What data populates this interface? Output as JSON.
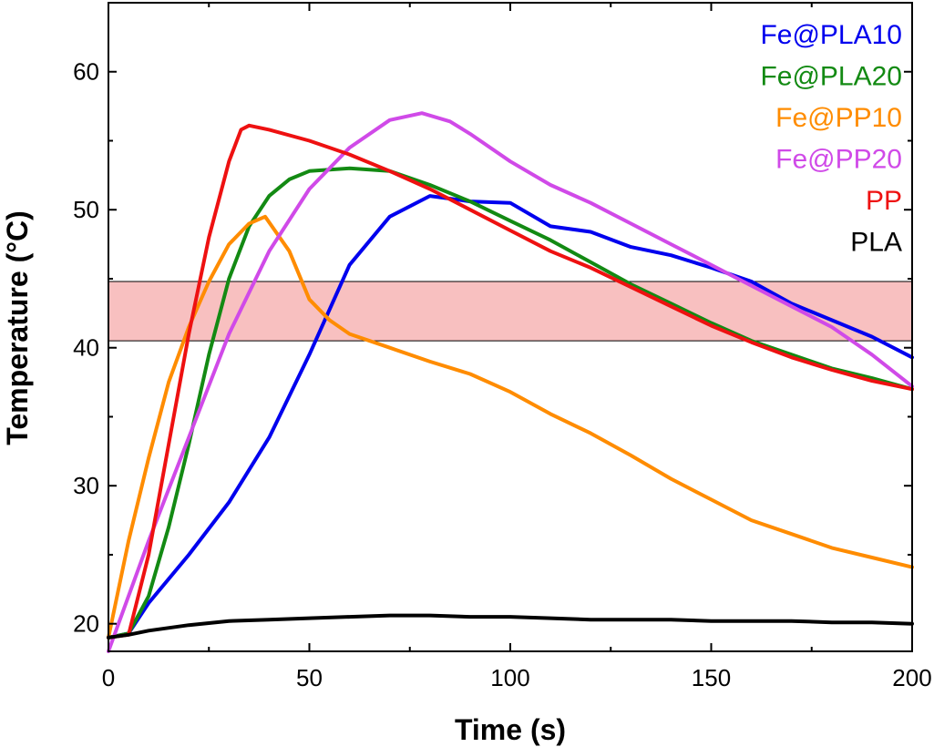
{
  "chart_data": {
    "type": "line",
    "xlabel": "Time (s)",
    "ylabel": "Temperature (°C)",
    "xlim": [
      0,
      200
    ],
    "ylim": [
      18,
      65
    ],
    "xticks": [
      0,
      50,
      100,
      150,
      200
    ],
    "yticks": [
      20,
      30,
      40,
      50,
      60
    ],
    "legend_position": "top-right",
    "band": {
      "y_low": 40.5,
      "y_high": 44.8,
      "color": "#f8c0c0"
    },
    "series": [
      {
        "name": "Fe@PLA10",
        "color": "#0000ee",
        "x": [
          0,
          5,
          10,
          20,
          30,
          40,
          50,
          60,
          70,
          80,
          90,
          100,
          110,
          120,
          130,
          140,
          150,
          160,
          170,
          180,
          190,
          200
        ],
        "y": [
          19,
          19.3,
          21.5,
          25,
          28.8,
          33.5,
          39.5,
          46,
          49.5,
          51,
          50.6,
          50.5,
          48.8,
          48.4,
          47.3,
          46.7,
          45.8,
          44.8,
          43.2,
          42,
          40.8,
          39.3
        ]
      },
      {
        "name": "Fe@PLA20",
        "color": "#138a13",
        "x": [
          0,
          5,
          10,
          15,
          20,
          25,
          30,
          35,
          40,
          45,
          50,
          60,
          70,
          80,
          90,
          100,
          110,
          120,
          130,
          140,
          150,
          160,
          170,
          180,
          190,
          200
        ],
        "y": [
          19,
          19.3,
          22,
          27,
          33,
          39.5,
          45,
          48.8,
          51,
          52.2,
          52.8,
          53,
          52.8,
          51.8,
          50.6,
          49.2,
          47.8,
          46.2,
          44.6,
          43.2,
          41.8,
          40.5,
          39.5,
          38.5,
          37.8,
          37
        ]
      },
      {
        "name": "Fe@PP10",
        "color": "#ff8c00",
        "x": [
          0,
          5,
          10,
          15,
          20,
          25,
          30,
          35,
          39,
          45,
          50,
          55,
          60,
          70,
          80,
          90,
          100,
          110,
          120,
          130,
          140,
          150,
          160,
          170,
          180,
          190,
          200
        ],
        "y": [
          19,
          26,
          32,
          37.5,
          41.5,
          44.8,
          47.5,
          49,
          49.5,
          47,
          43.5,
          42,
          41,
          40,
          39,
          38.1,
          36.8,
          35.2,
          33.8,
          32.2,
          30.5,
          29,
          27.5,
          26.5,
          25.5,
          24.8,
          24.1
        ]
      },
      {
        "name": "Fe@PP20",
        "color": "#d04ae8",
        "x": [
          0,
          10,
          20,
          30,
          40,
          50,
          60,
          70,
          78,
          85,
          90,
          100,
          110,
          120,
          130,
          140,
          150,
          160,
          170,
          180,
          190,
          200
        ],
        "y": [
          18,
          26,
          33.5,
          41,
          47,
          51.5,
          54.5,
          56.5,
          57,
          56.4,
          55.5,
          53.5,
          51.8,
          50.5,
          49,
          47.5,
          46,
          44.5,
          43,
          41.5,
          39.5,
          37.2
        ]
      },
      {
        "name": "PP",
        "color": "#ee1111",
        "x": [
          0,
          5,
          10,
          15,
          20,
          25,
          30,
          33,
          35,
          40,
          50,
          60,
          70,
          80,
          90,
          100,
          110,
          120,
          130,
          140,
          150,
          160,
          170,
          180,
          190,
          200
        ],
        "y": [
          19,
          19.2,
          25,
          33,
          41,
          48,
          53.5,
          55.8,
          56.1,
          55.8,
          55,
          54,
          52.8,
          51.5,
          50,
          48.5,
          47,
          45.8,
          44.4,
          43,
          41.6,
          40.4,
          39.3,
          38.4,
          37.6,
          37
        ]
      },
      {
        "name": "PLA",
        "color": "#000000",
        "x": [
          0,
          5,
          10,
          20,
          30,
          40,
          50,
          60,
          70,
          80,
          90,
          100,
          110,
          120,
          130,
          140,
          150,
          160,
          170,
          180,
          190,
          200
        ],
        "y": [
          19,
          19.2,
          19.5,
          19.9,
          20.2,
          20.3,
          20.4,
          20.5,
          20.6,
          20.6,
          20.5,
          20.5,
          20.4,
          20.3,
          20.3,
          20.3,
          20.2,
          20.2,
          20.2,
          20.1,
          20.1,
          20
        ]
      }
    ]
  }
}
